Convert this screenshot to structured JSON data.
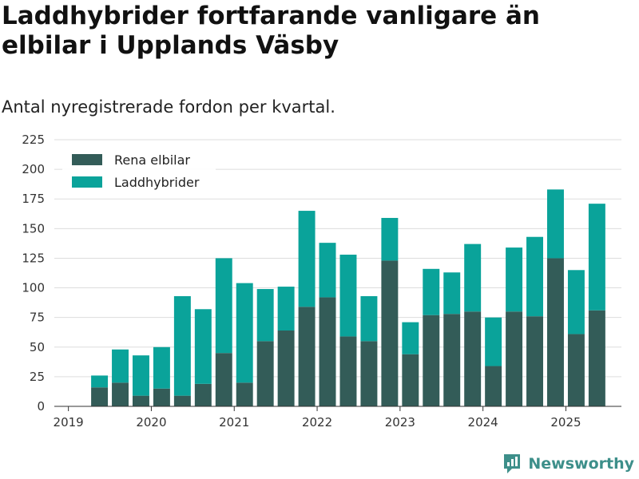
{
  "title": "Laddhybrider fortfarande vanligare än elbilar i Upplands Väsby",
  "subtitle": "Antal nyregistrerade fordon per kvartal.",
  "brand": {
    "name": "Newsworthy",
    "icon": "newsworthy-logo-icon"
  },
  "colors": {
    "elbilar": "#335c58",
    "laddhybrider": "#0aa39a",
    "grid": "#dddddd",
    "axis": "#333333"
  },
  "chart_data": {
    "type": "bar",
    "stacked": true,
    "categories": [
      "2019-Q2",
      "2019-Q3",
      "2019-Q4",
      "2020-Q1",
      "2020-Q2",
      "2020-Q3",
      "2020-Q4",
      "2021-Q1",
      "2021-Q2",
      "2021-Q3",
      "2021-Q4",
      "2022-Q1",
      "2022-Q2",
      "2022-Q3",
      "2022-Q4",
      "2023-Q1",
      "2023-Q2",
      "2023-Q3",
      "2023-Q4",
      "2024-Q1",
      "2024-Q2",
      "2024-Q3",
      "2024-Q4",
      "2025-Q1",
      "2025-Q2"
    ],
    "series": [
      {
        "name": "Rena elbilar",
        "values": [
          16,
          20,
          9,
          15,
          9,
          19,
          45,
          20,
          55,
          64,
          84,
          92,
          59,
          55,
          123,
          44,
          77,
          78,
          80,
          34,
          80,
          76,
          125,
          61,
          81
        ]
      },
      {
        "name": "Laddhybrider",
        "values": [
          10,
          28,
          34,
          35,
          84,
          63,
          80,
          84,
          44,
          37,
          81,
          46,
          69,
          38,
          36,
          27,
          39,
          35,
          57,
          41,
          54,
          67,
          58,
          54,
          90
        ]
      }
    ],
    "ylim": [
      0,
      225
    ],
    "yticks": [
      "0",
      "25",
      "50",
      "75",
      "100",
      "125",
      "150",
      "175",
      "200",
      "225"
    ],
    "xticks": [
      "2019",
      "2020",
      "2021",
      "2022",
      "2023",
      "2024",
      "2025"
    ],
    "legend_position": "top-left",
    "grid": "horizontal"
  }
}
